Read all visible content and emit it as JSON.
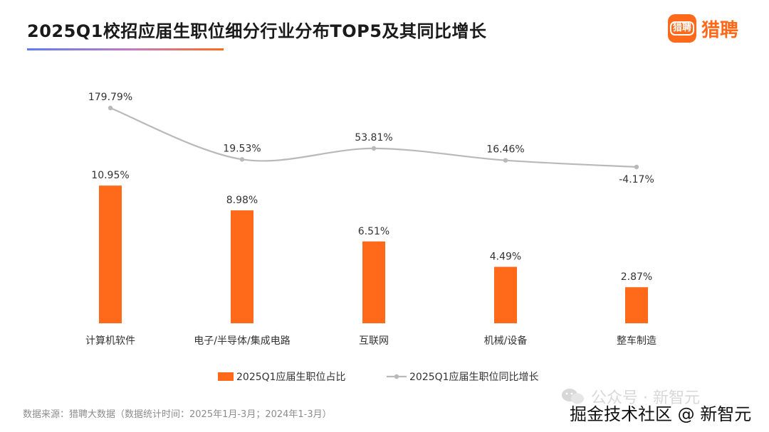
{
  "header": {
    "title": "2025Q1校招应届生职位细分行业分布TOP5及其同比增长",
    "logo_icon_text": "猎聘",
    "logo_text": "猎聘"
  },
  "colors": {
    "bar": "#ff6a1a",
    "line": "#b9b9b9",
    "accent": "#ff6a1a"
  },
  "chart_data": {
    "type": "bar",
    "categories": [
      "计算机软件",
      "电子/半导体/集成电路",
      "互联网",
      "机械/设备",
      "整车制造"
    ],
    "series": [
      {
        "name": "2025Q1应届生职位占比",
        "type": "bar",
        "values": [
          10.95,
          8.98,
          6.51,
          4.49,
          2.87
        ],
        "labels": [
          "10.95%",
          "8.98%",
          "6.51%",
          "4.49%",
          "2.87%"
        ]
      },
      {
        "name": "2025Q1应届生职位同比增长",
        "type": "line",
        "values": [
          179.79,
          19.53,
          53.81,
          16.46,
          -4.17
        ],
        "labels": [
          "179.79%",
          "19.53%",
          "53.81%",
          "16.46%",
          "-4.17%"
        ]
      }
    ],
    "legend_position": "bottom-center",
    "grid": false
  },
  "footer": {
    "source": "数据来源：猎聘大数据（数据统计时间：2025年1月-3月；2024年1-3月）",
    "watermark_top": "公众号 · 新智元",
    "watermark_bottom": "掘金技术社区 @ 新智元"
  }
}
